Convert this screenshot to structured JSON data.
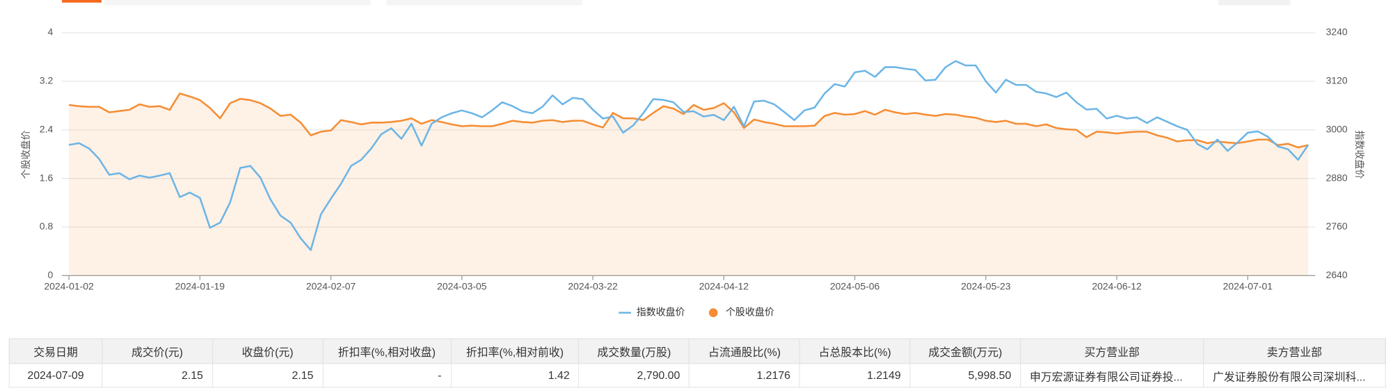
{
  "chart_data": {
    "type": "line",
    "y_label": "个股收盘价",
    "y2_label": "指数收盘价",
    "categories": [
      "2024-01-02",
      null,
      null,
      null,
      null,
      null,
      null,
      null,
      null,
      null,
      null,
      null,
      null,
      "2024-01-19",
      null,
      null,
      null,
      null,
      null,
      null,
      null,
      null,
      null,
      null,
      null,
      null,
      "2024-02-07",
      null,
      null,
      null,
      null,
      null,
      null,
      null,
      null,
      null,
      null,
      null,
      null,
      "2024-03-05",
      null,
      null,
      null,
      null,
      null,
      null,
      null,
      null,
      null,
      null,
      null,
      null,
      "2024-03-22",
      null,
      null,
      null,
      null,
      null,
      null,
      null,
      null,
      null,
      null,
      null,
      null,
      "2024-04-12",
      null,
      null,
      null,
      null,
      null,
      null,
      null,
      null,
      null,
      null,
      null,
      null,
      "2024-05-06",
      null,
      null,
      null,
      null,
      null,
      null,
      null,
      null,
      null,
      null,
      null,
      null,
      "2024-05-23",
      null,
      null,
      null,
      null,
      null,
      null,
      null,
      null,
      null,
      null,
      null,
      null,
      "2024-06-12",
      null,
      null,
      null,
      null,
      null,
      null,
      null,
      null,
      null,
      null,
      null,
      null,
      "2024-07-01",
      null,
      null,
      null,
      null,
      null,
      null
    ],
    "series": [
      {
        "name": "指数收盘价",
        "color": "#6cb5e6",
        "axis": "y2",
        "values": [
          2963,
          2967,
          2954,
          2928,
          2889,
          2893,
          2878,
          2887,
          2882,
          2887,
          2893,
          2834,
          2845,
          2832,
          2758,
          2771,
          2821,
          2906,
          2911,
          2882,
          2828,
          2788,
          2771,
          2732,
          2703,
          2791,
          2830,
          2867,
          2911,
          2926,
          2954,
          2989,
          3004,
          2978,
          3015,
          2961,
          3015,
          3031,
          3041,
          3048,
          3041,
          3031,
          3048,
          3068,
          3059,
          3046,
          3041,
          3057,
          3085,
          3063,
          3079,
          3076,
          3050,
          3028,
          3033,
          2993,
          3011,
          3041,
          3076,
          3074,
          3068,
          3044,
          3046,
          3033,
          3037,
          3024,
          3057,
          3009,
          3070,
          3072,
          3063,
          3044,
          3024,
          3048,
          3055,
          3090,
          3113,
          3107,
          3142,
          3146,
          3131,
          3155,
          3155,
          3151,
          3148,
          3122,
          3124,
          3155,
          3170,
          3159,
          3159,
          3120,
          3092,
          3124,
          3111,
          3111,
          3094,
          3090,
          3081,
          3092,
          3068,
          3050,
          3052,
          3028,
          3035,
          3028,
          3031,
          3017,
          3031,
          3020,
          3009,
          3000,
          2965,
          2952,
          2976,
          2948,
          2969,
          2993,
          2996,
          2983,
          2959,
          2952,
          2926,
          2963
        ]
      },
      {
        "name": "个股收盘价",
        "color": "#f58d33",
        "area": true,
        "values": [
          2.81,
          2.79,
          2.78,
          2.78,
          2.69,
          2.71,
          2.73,
          2.82,
          2.78,
          2.79,
          2.73,
          3.0,
          2.95,
          2.89,
          2.76,
          2.59,
          2.84,
          2.91,
          2.89,
          2.84,
          2.75,
          2.63,
          2.65,
          2.52,
          2.31,
          2.37,
          2.39,
          2.56,
          2.53,
          2.49,
          2.52,
          2.52,
          2.53,
          2.55,
          2.59,
          2.5,
          2.56,
          2.53,
          2.49,
          2.46,
          2.47,
          2.46,
          2.46,
          2.5,
          2.55,
          2.53,
          2.52,
          2.55,
          2.56,
          2.53,
          2.55,
          2.55,
          2.49,
          2.44,
          2.68,
          2.59,
          2.59,
          2.56,
          2.68,
          2.79,
          2.75,
          2.66,
          2.81,
          2.73,
          2.76,
          2.84,
          2.69,
          2.43,
          2.57,
          2.53,
          2.5,
          2.46,
          2.46,
          2.46,
          2.47,
          2.63,
          2.68,
          2.65,
          2.66,
          2.71,
          2.65,
          2.73,
          2.69,
          2.66,
          2.68,
          2.65,
          2.63,
          2.66,
          2.65,
          2.62,
          2.6,
          2.55,
          2.53,
          2.55,
          2.5,
          2.5,
          2.46,
          2.49,
          2.43,
          2.41,
          2.4,
          2.28,
          2.37,
          2.36,
          2.34,
          2.36,
          2.37,
          2.37,
          2.31,
          2.27,
          2.21,
          2.23,
          2.23,
          2.18,
          2.21,
          2.19,
          2.18,
          2.21,
          2.24,
          2.24,
          2.15,
          2.17,
          2.11,
          2.15
        ]
      }
    ],
    "ylim": [
      0,
      4
    ],
    "yticks": [
      0,
      0.8,
      1.6,
      2.4,
      3.2,
      4
    ],
    "y2lim": [
      2640,
      3240
    ],
    "y2ticks": [
      2640,
      2760,
      2880,
      3000,
      3120,
      3240
    ],
    "grid": true,
    "legend": "bottom"
  },
  "table": {
    "columns": [
      "交易日期",
      "成交价(元)",
      "收盘价(元)",
      "折扣率(%,相对收盘)",
      "折扣率(%,相对前收)",
      "成交数量(万股)",
      "占流通股比(%)",
      "占总股本比(%)",
      "成交金额(万元)",
      "买方营业部",
      "卖方营业部"
    ],
    "rows": [
      [
        "2024-07-09",
        "2.15",
        "2.15",
        "-",
        "1.42",
        "2,790.00",
        "1.2176",
        "1.2149",
        "5,998.50",
        "申万宏源证券有限公司证券投...",
        "广发证券股份有限公司深圳科..."
      ]
    ]
  }
}
